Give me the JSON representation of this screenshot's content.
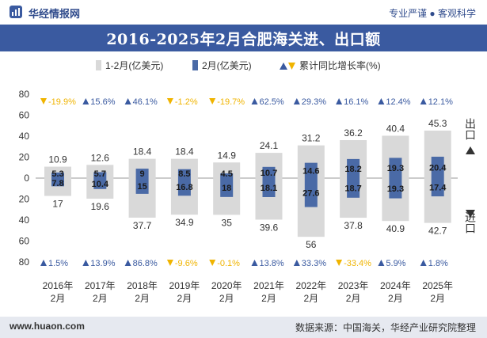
{
  "header": {
    "brand": "华经情报网",
    "tagline": "专业严谨 ● 客观科学"
  },
  "title": "2016-2025年2月合肥海关进、出口额",
  "legend": {
    "cum": "1-2月(亿美元)",
    "feb": "2月(亿美元)",
    "growth": "累计同比增长率(%)"
  },
  "side_labels": {
    "export": "出口",
    "import": "进口"
  },
  "footer": {
    "site": "www.huaon.com",
    "source": "数据来源：中国海关，华经产业研究院整理"
  },
  "colors": {
    "cum_bar": "#d9d9d9",
    "feb_bar": "#4a6aa6",
    "up": "#3a5aa0",
    "down": "#f0b400"
  },
  "chart_data": {
    "type": "bar",
    "title": "2016-2025年2月合肥海关进、出口额",
    "categories": [
      "2016年\n2月",
      "2017年\n2月",
      "2018年\n2月",
      "2019年\n2月",
      "2020年\n2月",
      "2021年\n2月",
      "2022年\n2月",
      "2023年\n2月",
      "2024年\n2月",
      "2025年\n2月"
    ],
    "ylim": [
      -80,
      80
    ],
    "yticks": [
      80,
      60,
      40,
      20,
      0,
      20,
      40,
      60,
      80
    ],
    "series": [
      {
        "name": "出口 1-2月(亿美元)",
        "values": [
          10.9,
          12.6,
          18.4,
          18.4,
          14.9,
          24.1,
          31.2,
          36.2,
          40.4,
          45.3
        ]
      },
      {
        "name": "出口 2月(亿美元)",
        "values": [
          5.3,
          5.7,
          9,
          8.5,
          4.5,
          10.7,
          14.6,
          18.2,
          19.3,
          20.4
        ]
      },
      {
        "name": "进口 1-2月(亿美元)",
        "values": [
          17,
          19.6,
          37.7,
          34.9,
          35,
          39.6,
          56,
          37.8,
          40.9,
          42.7
        ]
      },
      {
        "name": "进口 2月(亿美元)",
        "values": [
          7.8,
          10.4,
          15,
          16.8,
          18,
          18.1,
          27.6,
          18.7,
          19.3,
          17.4
        ]
      }
    ],
    "export_growth": [
      "-19.9%",
      "15.6%",
      "46.1%",
      "-1.2%",
      "-19.7%",
      "62.5%",
      "29.3%",
      "16.1%",
      "12.4%",
      "12.1%"
    ],
    "import_growth": [
      "1.5%",
      "13.9%",
      "86.8%",
      "-9.6%",
      "-0.1%",
      "13.8%",
      "33.3%",
      "-33.4%",
      "5.9%",
      "1.8%"
    ]
  }
}
